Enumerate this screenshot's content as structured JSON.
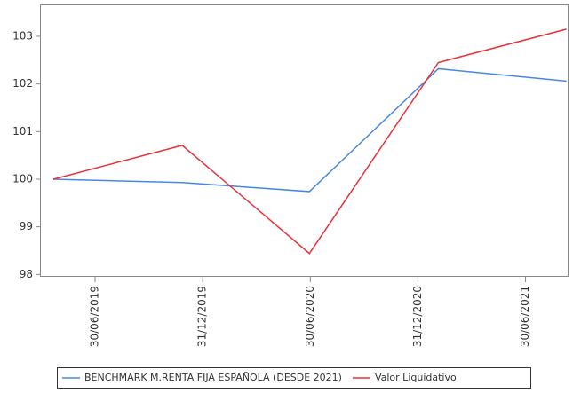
{
  "chart_data": {
    "type": "line",
    "x": [
      2019.306,
      2019.905,
      2020.496,
      2021.095,
      2021.69
    ],
    "xlim": [
      2019.244,
      2021.7
    ],
    "xticks": [
      {
        "value": 2019.5,
        "label": "30/06/2019"
      },
      {
        "value": 2020.0,
        "label": "31/12/2019"
      },
      {
        "value": 2020.5,
        "label": "30/06/2020"
      },
      {
        "value": 2021.0,
        "label": "31/12/2020"
      },
      {
        "value": 2021.5,
        "label": "30/06/2021"
      }
    ],
    "ylim": [
      97.95,
      103.67
    ],
    "yticks": [
      98,
      99,
      100,
      101,
      102,
      103
    ],
    "series": [
      {
        "name": "BENCHMARK M.RENTA FIJA ESPAÑOLA (DESDE 2021)",
        "color": "#4a86e8",
        "values": [
          100.0,
          99.93,
          99.74,
          102.32,
          102.06
        ]
      },
      {
        "name": "Valor Liquidativo",
        "color": "#e8323a",
        "values": [
          100.0,
          100.71,
          98.44,
          102.45,
          103.15
        ]
      }
    ]
  }
}
